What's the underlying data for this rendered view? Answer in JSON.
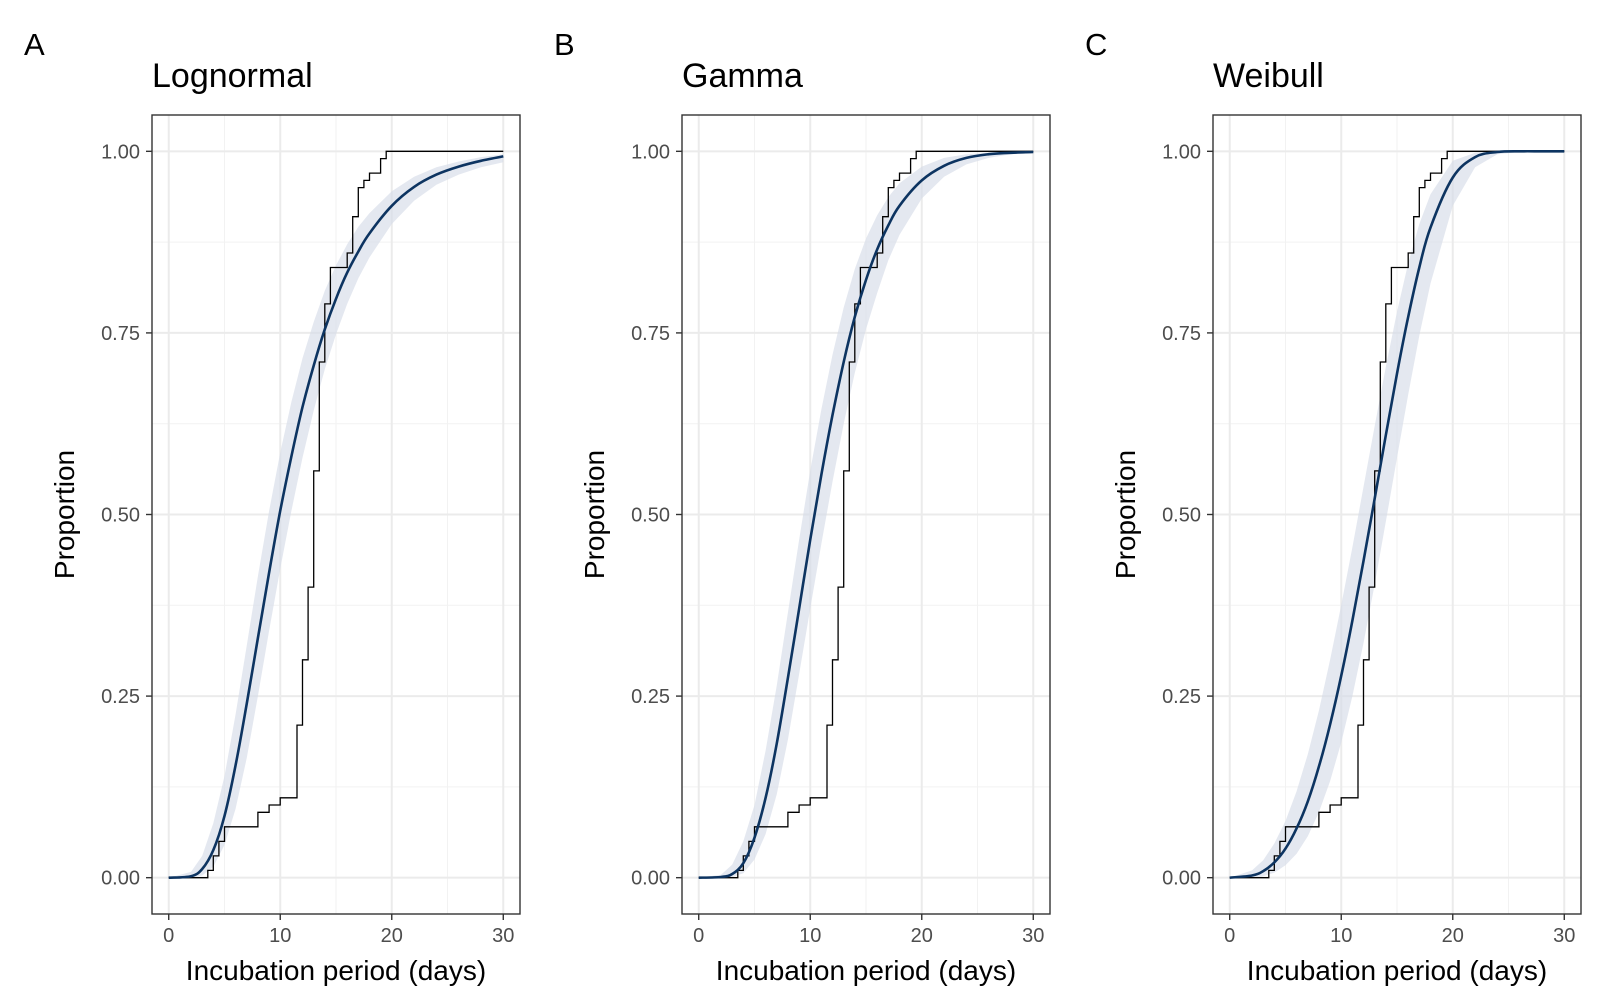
{
  "colors": {
    "fit": "#0d3461",
    "band": "#d6dce8",
    "ecdf": "#000000"
  },
  "chart_data": [
    {
      "panel": "A",
      "title": "Lognormal",
      "type": "line",
      "xlabel": "Incubation period (days)",
      "ylabel": "Proportion",
      "xlim": [
        -1.5,
        31.5
      ],
      "ylim": [
        -0.05,
        1.05
      ],
      "x_ticks": [
        "0",
        "10",
        "20",
        "30"
      ],
      "y_ticks": [
        "0.00",
        "0.25",
        "0.50",
        "0.75",
        "1.00"
      ],
      "grid": true,
      "series": [
        {
          "kind": "fitted_cdf",
          "x": [
            0,
            2,
            3,
            4,
            5,
            6,
            7,
            8,
            9,
            10,
            11,
            12,
            13,
            14,
            15,
            16,
            17,
            18,
            20,
            22,
            24,
            26,
            28,
            30
          ],
          "y": [
            0.0,
            0.002,
            0.012,
            0.038,
            0.085,
            0.155,
            0.24,
            0.33,
            0.42,
            0.505,
            0.58,
            0.648,
            0.705,
            0.755,
            0.797,
            0.833,
            0.862,
            0.887,
            0.925,
            0.951,
            0.968,
            0.979,
            0.987,
            0.993
          ],
          "lower": [
            0.0,
            0.0,
            0.003,
            0.015,
            0.045,
            0.095,
            0.165,
            0.25,
            0.34,
            0.425,
            0.505,
            0.578,
            0.643,
            0.7,
            0.748,
            0.79,
            0.825,
            0.854,
            0.9,
            0.932,
            0.954,
            0.968,
            0.978,
            0.985
          ],
          "upper": [
            0.0,
            0.008,
            0.03,
            0.075,
            0.14,
            0.225,
            0.32,
            0.415,
            0.505,
            0.585,
            0.655,
            0.715,
            0.765,
            0.808,
            0.843,
            0.872,
            0.896,
            0.915,
            0.945,
            0.965,
            0.978,
            0.986,
            0.992,
            0.996
          ]
        },
        {
          "kind": "empirical_cdf",
          "x": [
            0,
            3.5,
            4,
            4.5,
            5,
            5.5,
            8,
            8.5,
            9,
            10,
            11.5,
            12,
            12.5,
            13,
            13.5,
            14,
            14.5,
            15,
            16,
            16.5,
            17,
            17.5,
            18,
            19,
            19.5,
            30
          ],
          "y": [
            0.0,
            0.01,
            0.03,
            0.05,
            0.07,
            0.07,
            0.09,
            0.09,
            0.1,
            0.11,
            0.21,
            0.3,
            0.4,
            0.56,
            0.71,
            0.79,
            0.84,
            0.84,
            0.86,
            0.91,
            0.95,
            0.96,
            0.97,
            0.99,
            1.0,
            1.0
          ]
        }
      ]
    },
    {
      "panel": "B",
      "title": "Gamma",
      "type": "line",
      "xlabel": "Incubation period (days)",
      "ylabel": "Proportion",
      "xlim": [
        -1.5,
        31.5
      ],
      "ylim": [
        -0.05,
        1.05
      ],
      "x_ticks": [
        "0",
        "10",
        "20",
        "30"
      ],
      "y_ticks": [
        "0.00",
        "0.25",
        "0.50",
        "0.75",
        "1.00"
      ],
      "grid": true,
      "series": [
        {
          "kind": "fitted_cdf",
          "x": [
            0,
            2,
            3,
            4,
            5,
            6,
            7,
            8,
            9,
            10,
            11,
            12,
            13,
            14,
            15,
            16,
            17,
            18,
            20,
            22,
            24,
            26,
            28,
            30
          ],
          "y": [
            0.0,
            0.001,
            0.005,
            0.02,
            0.055,
            0.11,
            0.185,
            0.275,
            0.37,
            0.465,
            0.555,
            0.637,
            0.71,
            0.772,
            0.823,
            0.865,
            0.898,
            0.925,
            0.96,
            0.98,
            0.991,
            0.996,
            0.998,
            0.999
          ],
          "lower": [
            0.0,
            0.0,
            0.001,
            0.006,
            0.025,
            0.06,
            0.115,
            0.19,
            0.28,
            0.37,
            0.46,
            0.545,
            0.625,
            0.695,
            0.755,
            0.805,
            0.85,
            0.885,
            0.935,
            0.965,
            0.982,
            0.991,
            0.996,
            0.998
          ],
          "upper": [
            0.0,
            0.004,
            0.018,
            0.05,
            0.1,
            0.175,
            0.265,
            0.365,
            0.465,
            0.56,
            0.645,
            0.72,
            0.785,
            0.838,
            0.88,
            0.912,
            0.937,
            0.956,
            0.979,
            0.991,
            0.996,
            0.998,
            0.999,
            1.0
          ]
        },
        {
          "kind": "empirical_cdf",
          "x": [
            0,
            3.5,
            4,
            4.5,
            5,
            5.5,
            8,
            8.5,
            9,
            10,
            11.5,
            12,
            12.5,
            13,
            13.5,
            14,
            14.5,
            15,
            16,
            16.5,
            17,
            17.5,
            18,
            19,
            19.5,
            30
          ],
          "y": [
            0.0,
            0.01,
            0.03,
            0.05,
            0.07,
            0.07,
            0.09,
            0.09,
            0.1,
            0.11,
            0.21,
            0.3,
            0.4,
            0.56,
            0.71,
            0.79,
            0.84,
            0.84,
            0.86,
            0.91,
            0.95,
            0.96,
            0.97,
            0.99,
            1.0,
            1.0
          ]
        }
      ]
    },
    {
      "panel": "C",
      "title": "Weibull",
      "type": "line",
      "xlabel": "Incubation period (days)",
      "ylabel": "Proportion",
      "xlim": [
        -1.5,
        31.5
      ],
      "ylim": [
        -0.05,
        1.05
      ],
      "x_ticks": [
        "0",
        "10",
        "20",
        "30"
      ],
      "y_ticks": [
        "0.00",
        "0.25",
        "0.50",
        "0.75",
        "1.00"
      ],
      "grid": true,
      "series": [
        {
          "kind": "fitted_cdf",
          "x": [
            0,
            2,
            3,
            4,
            5,
            6,
            7,
            8,
            9,
            10,
            11,
            12,
            13,
            14,
            15,
            16,
            17,
            18,
            20,
            22,
            24,
            26,
            28,
            30
          ],
          "y": [
            0.0,
            0.003,
            0.009,
            0.021,
            0.04,
            0.068,
            0.105,
            0.153,
            0.211,
            0.278,
            0.354,
            0.436,
            0.522,
            0.609,
            0.694,
            0.772,
            0.84,
            0.895,
            0.964,
            0.992,
            0.999,
            1.0,
            1.0,
            1.0
          ],
          "lower": [
            0.0,
            0.0,
            0.002,
            0.007,
            0.017,
            0.033,
            0.057,
            0.09,
            0.133,
            0.186,
            0.25,
            0.323,
            0.404,
            0.49,
            0.578,
            0.665,
            0.746,
            0.818,
            0.925,
            0.978,
            0.996,
            0.999,
            1.0,
            1.0
          ],
          "upper": [
            0.0,
            0.01,
            0.024,
            0.047,
            0.078,
            0.119,
            0.17,
            0.23,
            0.3,
            0.375,
            0.455,
            0.538,
            0.622,
            0.703,
            0.779,
            0.846,
            0.9,
            0.941,
            0.987,
            0.998,
            1.0,
            1.0,
            1.0,
            1.0
          ]
        },
        {
          "kind": "empirical_cdf",
          "x": [
            0,
            3.5,
            4,
            4.5,
            5,
            5.5,
            8,
            8.5,
            9,
            10,
            11.5,
            12,
            12.5,
            13,
            13.5,
            14,
            14.5,
            15,
            16,
            16.5,
            17,
            17.5,
            18,
            19,
            19.5,
            30
          ],
          "y": [
            0.0,
            0.01,
            0.03,
            0.05,
            0.07,
            0.07,
            0.09,
            0.09,
            0.1,
            0.11,
            0.21,
            0.3,
            0.4,
            0.56,
            0.71,
            0.79,
            0.84,
            0.84,
            0.86,
            0.91,
            0.95,
            0.96,
            0.97,
            0.99,
            1.0,
            1.0
          ]
        }
      ]
    }
  ]
}
